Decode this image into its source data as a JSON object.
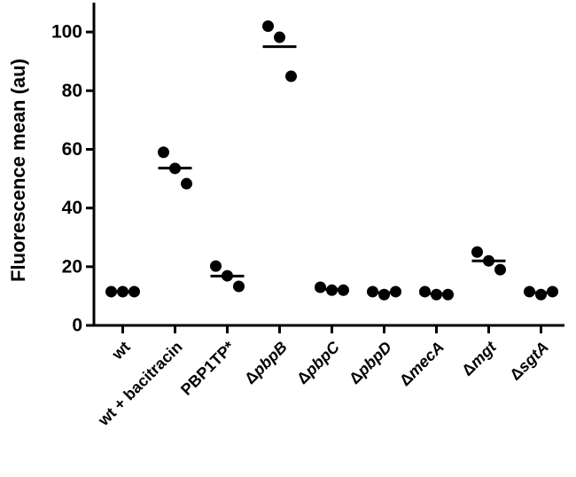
{
  "chart_data": {
    "type": "dot",
    "y_label": "Fluorescence mean (au)",
    "categories": [
      "wt",
      "wt + bacitracin",
      "PBP1TP*",
      "ΔpbpB",
      "ΔpbpC",
      "ΔpbpD",
      "ΔmecA",
      "Δmgt",
      "ΔsgtA"
    ],
    "points": [
      [
        11.5,
        11.5,
        11.5
      ],
      [
        59,
        53.5,
        48.3
      ],
      [
        20.2,
        16.9,
        13.3
      ],
      [
        102,
        98.2,
        84.9
      ],
      [
        13,
        12,
        12
      ],
      [
        11.5,
        10.5,
        11.5
      ],
      [
        11.5,
        10.5,
        10.5
      ],
      [
        25,
        22,
        19
      ],
      [
        11.5,
        10.5,
        11.5
      ]
    ],
    "means": [
      11.5,
      53.6,
      16.8,
      95,
      12.3,
      11.2,
      10.8,
      22,
      11.2
    ],
    "color": "#000000",
    "ylim": [
      0,
      110
    ],
    "yticks": [
      0,
      20,
      40,
      60,
      80,
      100
    ]
  }
}
